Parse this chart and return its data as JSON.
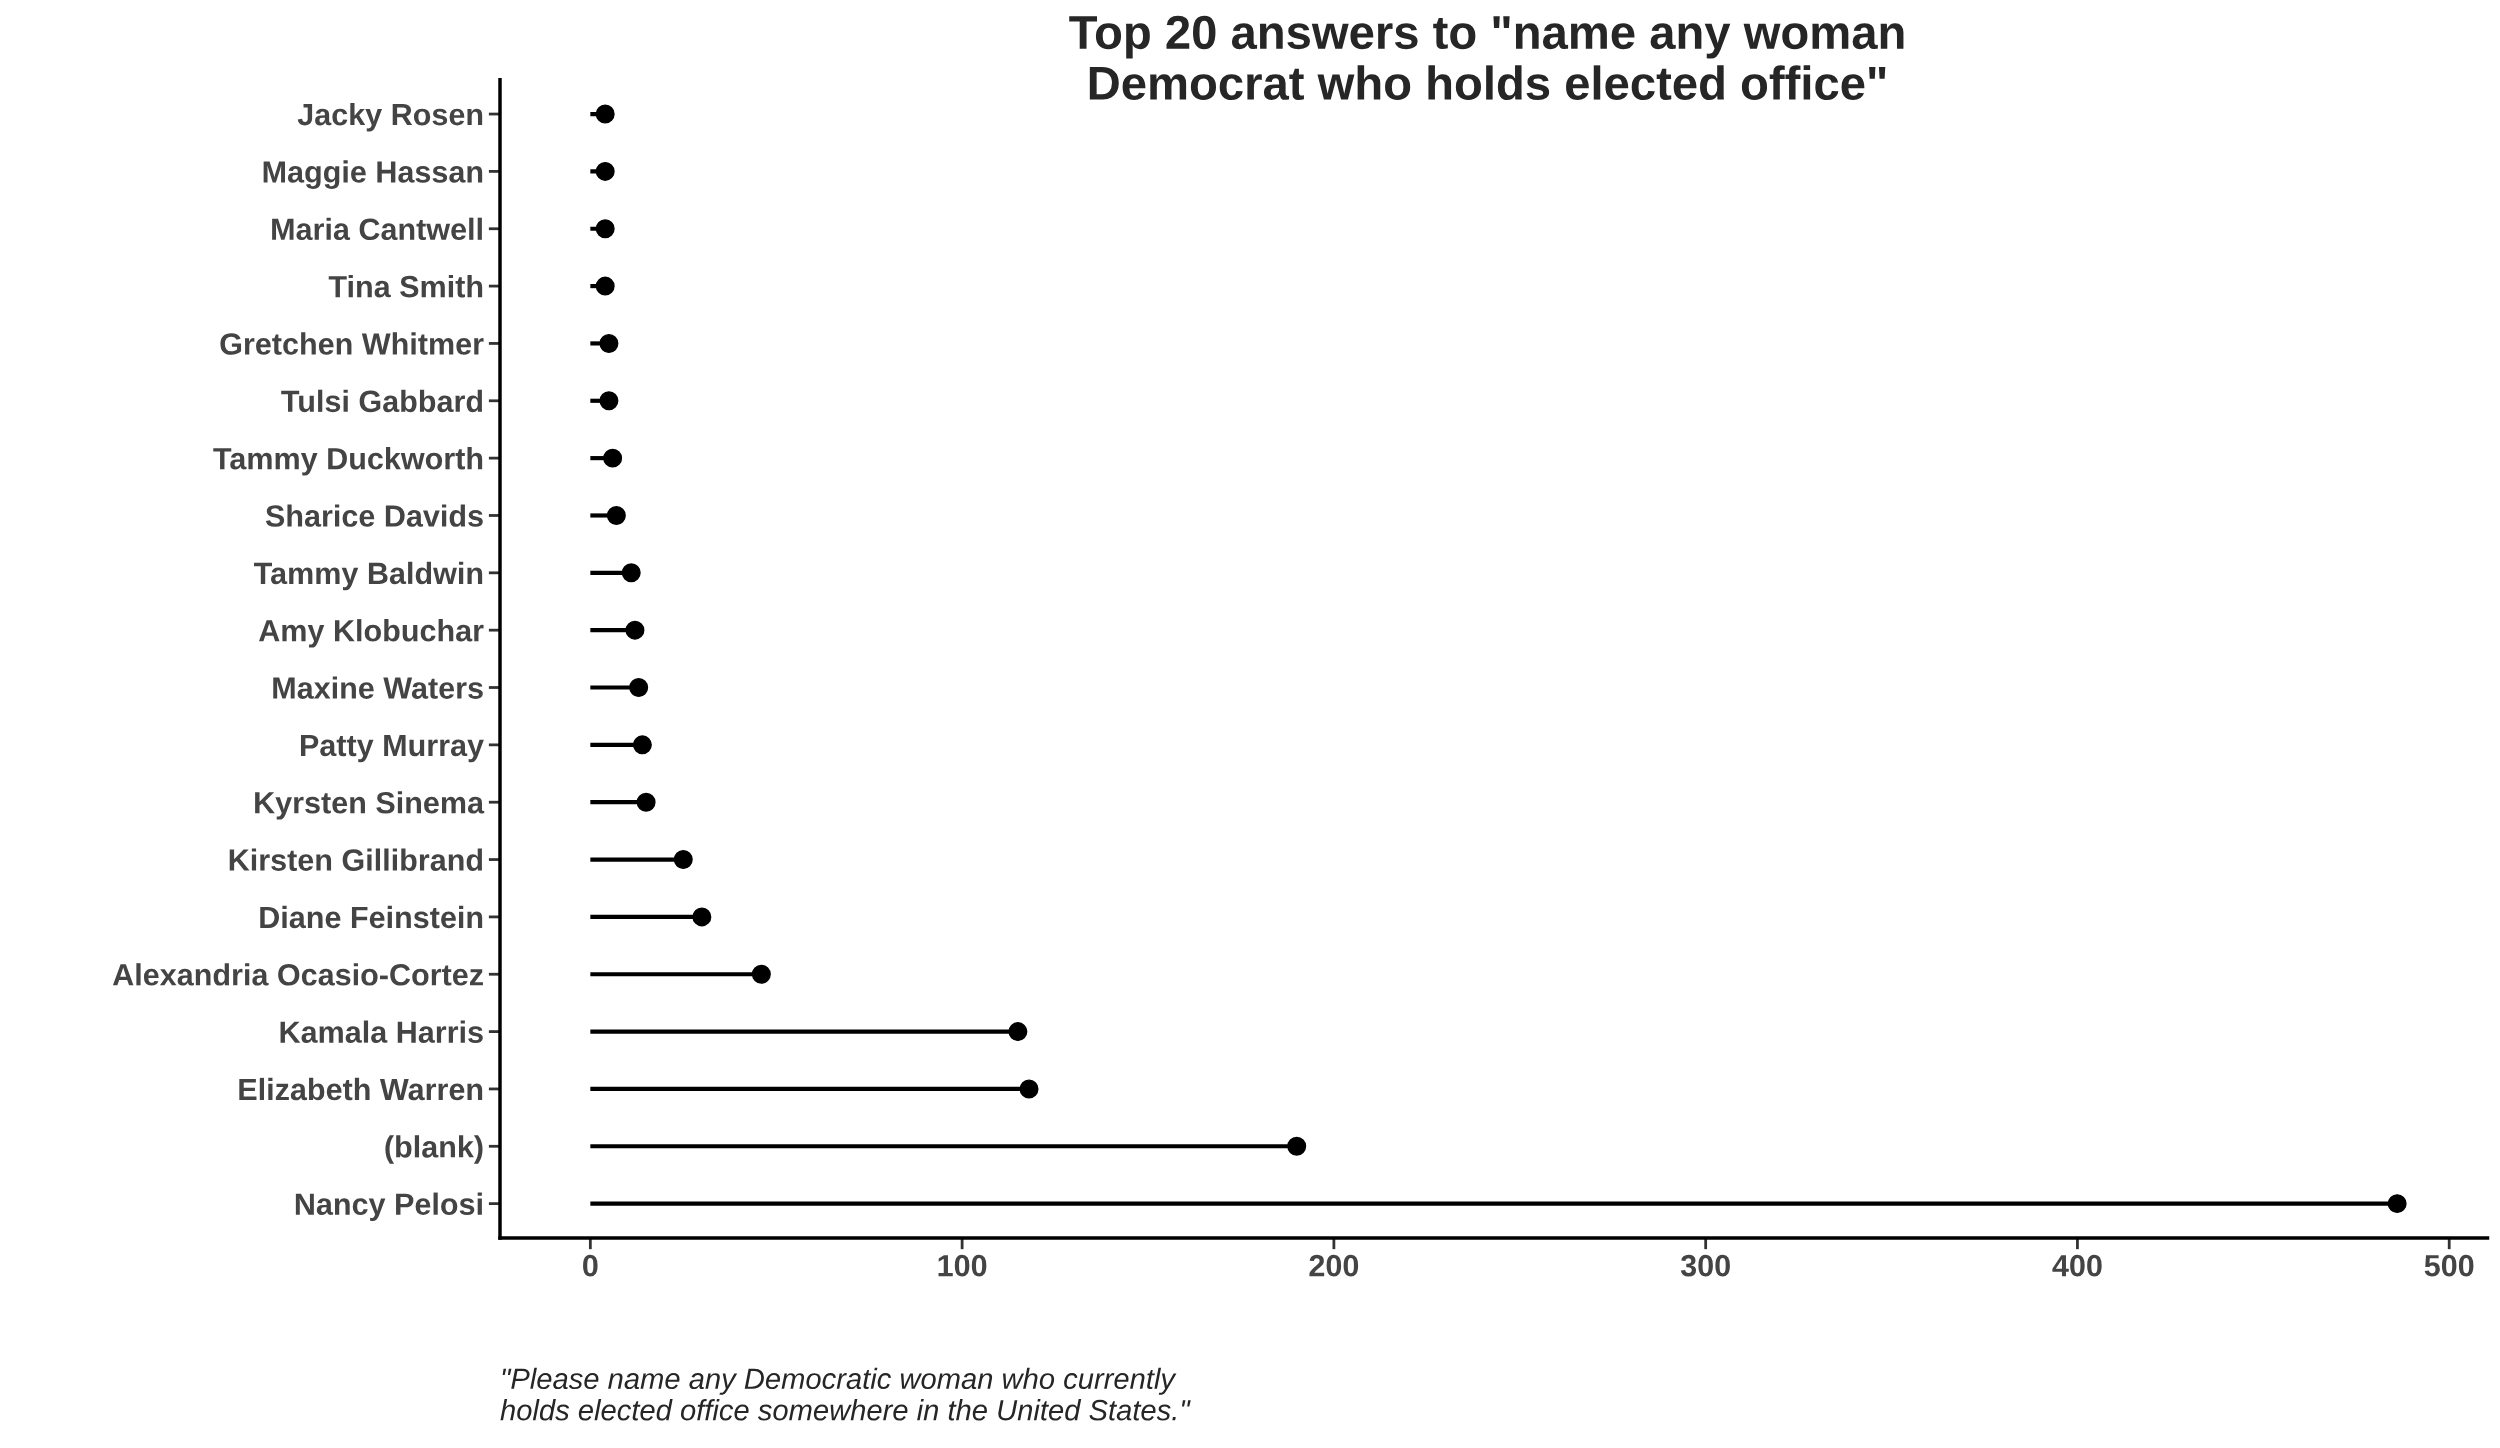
{
  "chart_data": {
    "type": "lollipop",
    "orientation": "horizontal",
    "title": "Top 20 answers to \"name any woman\nDemocrat who holds elected office\"",
    "categories": [
      "Jacky Rosen",
      "Maggie Hassan",
      "Maria Cantwell",
      "Tina Smith",
      "Gretchen Whitmer",
      "Tulsi Gabbard",
      "Tammy Duckworth",
      "Sharice Davids",
      "Tammy Baldwin",
      "Amy Klobuchar",
      "Maxine Waters",
      "Patty Murray",
      "Kyrsten Sinema",
      "Kirsten Gillibrand",
      "Diane Feinstein",
      "Alexandria Ocasio-Cortez",
      "Kamala Harris",
      "Elizabeth Warren",
      "(blank)",
      "Nancy Pelosi"
    ],
    "values": [
      4,
      4,
      4,
      4,
      5,
      5,
      6,
      7,
      11,
      12,
      13,
      14,
      15,
      25,
      30,
      46,
      115,
      118,
      190,
      486
    ],
    "color": "#000000",
    "marker": "circle",
    "xlim": [
      -24.3,
      510.3
    ],
    "xticks": [
      0,
      100,
      200,
      300,
      400,
      500
    ],
    "grid": false,
    "annotations": [
      "\"Please name any Democratic woman who currently\nholds elected office somewhere in the United States.\""
    ]
  }
}
